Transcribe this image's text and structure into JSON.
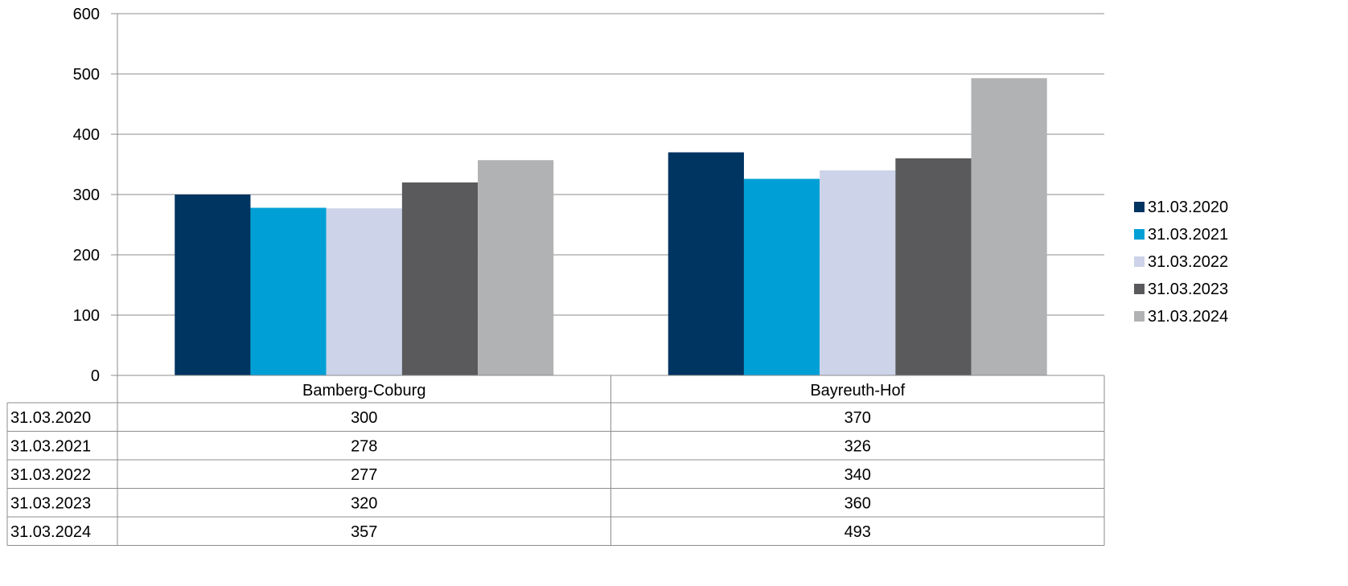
{
  "chart_data": {
    "type": "bar",
    "categories": [
      "Bamberg-Coburg",
      "Bayreuth-Hof"
    ],
    "series": [
      {
        "name": "31.03.2020",
        "color": "#003461",
        "values": [
          300,
          370
        ]
      },
      {
        "name": "31.03.2021",
        "color": "#00a0d6",
        "values": [
          278,
          326
        ]
      },
      {
        "name": "31.03.2022",
        "color": "#cdd3e8",
        "values": [
          277,
          340
        ]
      },
      {
        "name": "31.03.2023",
        "color": "#5a5a5c",
        "values": [
          320,
          360
        ]
      },
      {
        "name": "31.03.2024",
        "color": "#b1b2b4",
        "values": [
          357,
          493
        ]
      }
    ],
    "yticks": [
      "0",
      "100",
      "200",
      "300",
      "400",
      "500",
      "600"
    ],
    "ylim": [
      0,
      600
    ],
    "grid": true,
    "legend": "right",
    "data_table": true,
    "colors": {
      "grid": "#8c8c8c",
      "axis": "#8c8c8c",
      "table_border": "#8c8c8c"
    }
  }
}
